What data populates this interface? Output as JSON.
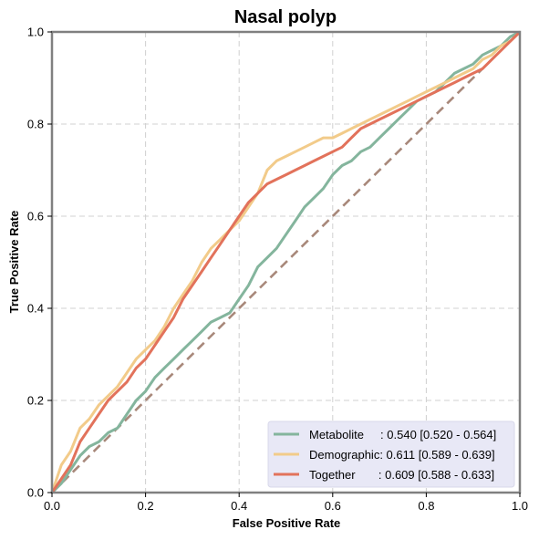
{
  "chart_data": {
    "type": "line",
    "title": "Nasal polyp",
    "xlabel": "False Positive Rate",
    "ylabel": "True Positive Rate",
    "xlim": [
      0,
      1
    ],
    "ylim": [
      0,
      1
    ],
    "xticks": [
      "0.0",
      "0.2",
      "0.4",
      "0.6",
      "0.8",
      "1.0"
    ],
    "yticks": [
      "0.0",
      "0.2",
      "0.4",
      "0.6",
      "0.8",
      "1.0"
    ],
    "grid": true,
    "legend_position": "lower-right",
    "colors": {
      "metabolite": "#84b59d",
      "demographic": "#f2cb8a",
      "together": "#e2725b",
      "diagonal": "#a8887a",
      "legend_bg": "#e8e8f6",
      "frame": "#808080"
    },
    "series": [
      {
        "name": "Metabolite",
        "legend_label": "Metabolite     : 0.540 [0.520 - 0.564]",
        "x": [
          0,
          0.02,
          0.04,
          0.06,
          0.08,
          0.1,
          0.12,
          0.14,
          0.16,
          0.18,
          0.2,
          0.22,
          0.24,
          0.26,
          0.28,
          0.3,
          0.32,
          0.34,
          0.36,
          0.38,
          0.4,
          0.42,
          0.44,
          0.46,
          0.48,
          0.5,
          0.52,
          0.54,
          0.56,
          0.58,
          0.6,
          0.62,
          0.64,
          0.66,
          0.68,
          0.7,
          0.72,
          0.74,
          0.76,
          0.78,
          0.8,
          0.82,
          0.84,
          0.86,
          0.88,
          0.9,
          0.92,
          0.94,
          0.96,
          0.98,
          1.0
        ],
        "y": [
          0,
          0.02,
          0.05,
          0.08,
          0.1,
          0.11,
          0.13,
          0.14,
          0.17,
          0.2,
          0.22,
          0.25,
          0.27,
          0.29,
          0.31,
          0.33,
          0.35,
          0.37,
          0.38,
          0.39,
          0.42,
          0.45,
          0.49,
          0.51,
          0.53,
          0.56,
          0.59,
          0.62,
          0.64,
          0.66,
          0.69,
          0.71,
          0.72,
          0.74,
          0.75,
          0.77,
          0.79,
          0.81,
          0.83,
          0.85,
          0.86,
          0.87,
          0.89,
          0.91,
          0.92,
          0.93,
          0.95,
          0.96,
          0.97,
          0.99,
          1.0
        ]
      },
      {
        "name": "Demographic",
        "legend_label": "Demographic: 0.611 [0.589 - 0.639]",
        "x": [
          0,
          0.02,
          0.04,
          0.06,
          0.08,
          0.1,
          0.12,
          0.14,
          0.16,
          0.18,
          0.2,
          0.22,
          0.24,
          0.26,
          0.28,
          0.3,
          0.32,
          0.34,
          0.36,
          0.38,
          0.4,
          0.42,
          0.44,
          0.46,
          0.48,
          0.5,
          0.52,
          0.54,
          0.56,
          0.58,
          0.6,
          0.62,
          0.64,
          0.66,
          0.68,
          0.7,
          0.72,
          0.74,
          0.76,
          0.78,
          0.8,
          0.82,
          0.84,
          0.86,
          0.88,
          0.9,
          0.92,
          0.94,
          0.96,
          0.98,
          1.0
        ],
        "y": [
          0,
          0.06,
          0.09,
          0.14,
          0.16,
          0.19,
          0.21,
          0.23,
          0.26,
          0.29,
          0.31,
          0.33,
          0.36,
          0.4,
          0.43,
          0.46,
          0.5,
          0.53,
          0.55,
          0.57,
          0.59,
          0.62,
          0.65,
          0.7,
          0.72,
          0.73,
          0.74,
          0.75,
          0.76,
          0.77,
          0.77,
          0.78,
          0.79,
          0.8,
          0.81,
          0.82,
          0.83,
          0.84,
          0.85,
          0.86,
          0.87,
          0.88,
          0.89,
          0.9,
          0.91,
          0.92,
          0.94,
          0.95,
          0.97,
          0.98,
          1.0
        ]
      },
      {
        "name": "Together",
        "legend_label": "Together       : 0.609 [0.588 - 0.633]",
        "x": [
          0,
          0.02,
          0.04,
          0.06,
          0.08,
          0.1,
          0.12,
          0.14,
          0.16,
          0.18,
          0.2,
          0.22,
          0.24,
          0.26,
          0.28,
          0.3,
          0.32,
          0.34,
          0.36,
          0.38,
          0.4,
          0.42,
          0.44,
          0.46,
          0.48,
          0.5,
          0.52,
          0.54,
          0.56,
          0.58,
          0.6,
          0.62,
          0.64,
          0.66,
          0.68,
          0.7,
          0.72,
          0.74,
          0.76,
          0.78,
          0.8,
          0.82,
          0.84,
          0.86,
          0.88,
          0.9,
          0.92,
          0.94,
          0.96,
          0.98,
          1.0
        ],
        "y": [
          0,
          0.03,
          0.06,
          0.11,
          0.14,
          0.17,
          0.2,
          0.22,
          0.24,
          0.27,
          0.29,
          0.32,
          0.35,
          0.38,
          0.42,
          0.45,
          0.48,
          0.51,
          0.54,
          0.57,
          0.6,
          0.63,
          0.65,
          0.67,
          0.68,
          0.69,
          0.7,
          0.71,
          0.72,
          0.73,
          0.74,
          0.75,
          0.77,
          0.79,
          0.8,
          0.81,
          0.82,
          0.83,
          0.84,
          0.85,
          0.86,
          0.87,
          0.88,
          0.89,
          0.9,
          0.91,
          0.92,
          0.94,
          0.96,
          0.98,
          1.0
        ]
      }
    ]
  }
}
